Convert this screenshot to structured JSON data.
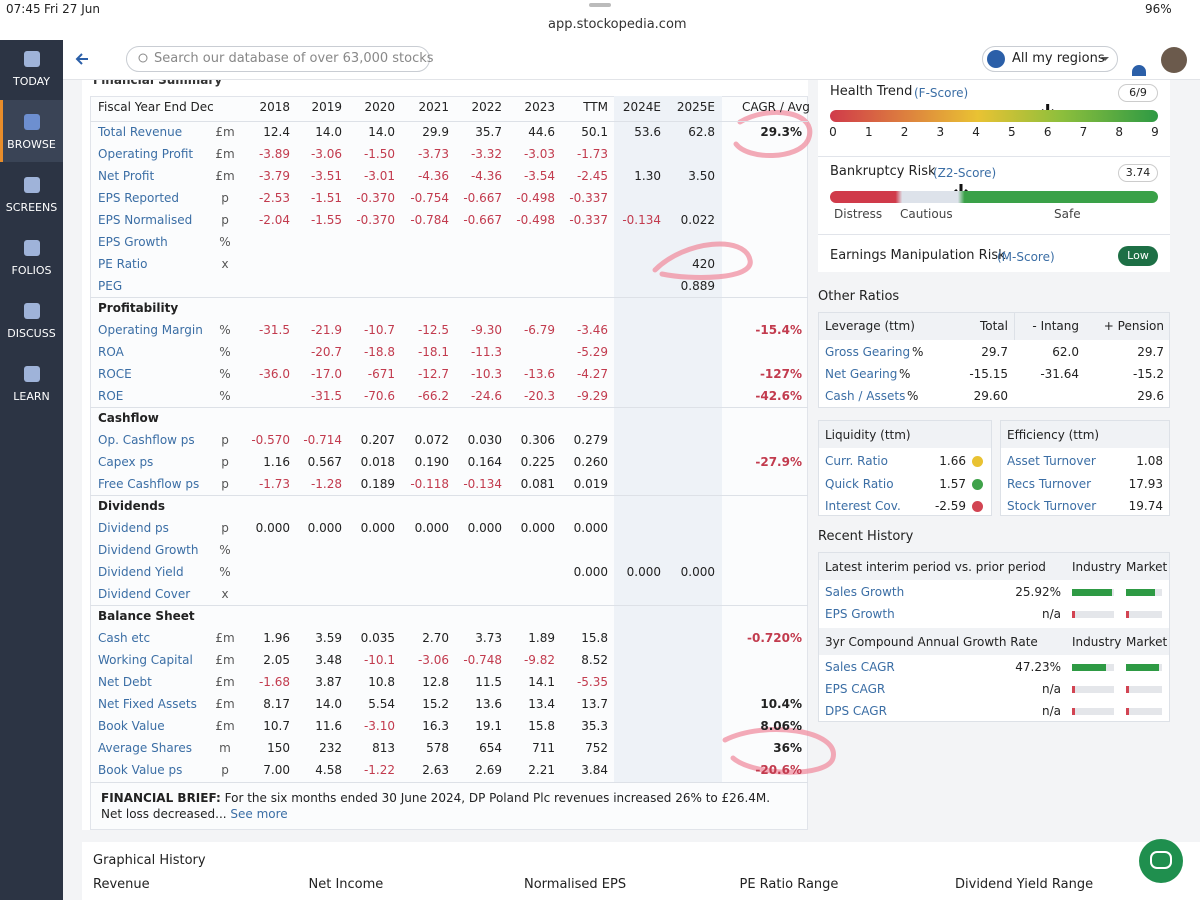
{
  "status": {
    "time": "07:45",
    "date": "Fri 27 Jun",
    "url": "app.stockopedia.com",
    "battery": "96%"
  },
  "nav": [
    "TODAY",
    "BROWSE",
    "SCREENS",
    "FOLIOS",
    "DISCUSS",
    "LEARN"
  ],
  "search": "Search our database of over 63,000 stocks",
  "region": "All my regions",
  "summary": {
    "title": "Financial Summary",
    "header": {
      "label": "Fiscal Year End Dec",
      "columns": [
        "2018",
        "2019",
        "2020",
        "2021",
        "2022",
        "2023",
        "TTM",
        "2024E",
        "2025E",
        "CAGR / Avg"
      ]
    },
    "rows": [
      {
        "label": "Total Revenue",
        "unit": "£m",
        "cells": [
          "12.4",
          "14.0",
          "14.0",
          "29.9",
          "35.7",
          "44.6",
          "50.1",
          "53.6",
          "62.8",
          "29.3%"
        ]
      },
      {
        "label": "Operating Profit",
        "unit": "£m",
        "cells": [
          "-3.89",
          "-3.06",
          "-1.50",
          "-3.73",
          "-3.32",
          "-3.03",
          "-1.73",
          null,
          null,
          null
        ]
      },
      {
        "label": "Net Profit",
        "unit": "£m",
        "cells": [
          "-3.79",
          "-3.51",
          "-3.01",
          "-4.36",
          "-4.36",
          "-3.54",
          "-2.45",
          "1.30",
          "3.50",
          null
        ]
      },
      {
        "label": "EPS Reported",
        "unit": "p",
        "cells": [
          "-2.53",
          "-1.51",
          "-0.370",
          "-0.754",
          "-0.667",
          "-0.498",
          "-0.337",
          null,
          null,
          null
        ]
      },
      {
        "label": "EPS Normalised",
        "unit": "p",
        "cells": [
          "-2.04",
          "-1.55",
          "-0.370",
          "-0.784",
          "-0.667",
          "-0.498",
          "-0.337",
          "-0.134",
          "0.022",
          null
        ]
      },
      {
        "label": "EPS Growth",
        "unit": "%",
        "cells": [
          null,
          null,
          null,
          null,
          null,
          null,
          null,
          null,
          null,
          null
        ]
      },
      {
        "label": "PE Ratio",
        "unit": "x",
        "cells": [
          null,
          null,
          null,
          null,
          null,
          null,
          null,
          null,
          "420",
          null
        ]
      },
      {
        "label": "PEG",
        "cells": [
          null,
          null,
          null,
          null,
          null,
          null,
          null,
          null,
          "0.889",
          null
        ]
      },
      {
        "section": "Profitability"
      },
      {
        "label": "Operating Margin",
        "unit": "%",
        "cells": [
          "-31.5",
          "-21.9",
          "-10.7",
          "-12.5",
          "-9.30",
          "-6.79",
          "-3.46",
          null,
          null,
          "-15.4%"
        ]
      },
      {
        "label": "ROA",
        "unit": "%",
        "cells": [
          null,
          "-20.7",
          "-18.8",
          "-18.1",
          "-11.3",
          null,
          "-5.29",
          null,
          null,
          null
        ]
      },
      {
        "label": "ROCE",
        "unit": "%",
        "cells": [
          "-36.0",
          "-17.0",
          "-671",
          "-12.7",
          "-10.3",
          "-13.6",
          "-4.27",
          null,
          null,
          "-127%"
        ]
      },
      {
        "label": "ROE",
        "unit": "%",
        "cells": [
          null,
          "-31.5",
          "-70.6",
          "-66.2",
          "-24.6",
          "-20.3",
          "-9.29",
          null,
          null,
          "-42.6%"
        ]
      },
      {
        "section": "Cashflow"
      },
      {
        "label": "Op. Cashflow ps",
        "unit": "p",
        "cells": [
          "-0.570",
          "-0.714",
          "0.207",
          "0.072",
          "0.030",
          "0.306",
          "0.279",
          null,
          null,
          null
        ]
      },
      {
        "label": "Capex ps",
        "unit": "p",
        "cells": [
          "1.16",
          "0.567",
          "0.018",
          "0.190",
          "0.164",
          "0.225",
          "0.260",
          null,
          null,
          "-27.9%"
        ]
      },
      {
        "label": "Free Cashflow ps",
        "unit": "p",
        "cells": [
          "-1.73",
          "-1.28",
          "0.189",
          "-0.118",
          "-0.134",
          "0.081",
          "0.019",
          null,
          null,
          null
        ]
      },
      {
        "section": "Dividends"
      },
      {
        "label": "Dividend ps",
        "unit": "p",
        "cells": [
          "0.000",
          "0.000",
          "0.000",
          "0.000",
          "0.000",
          "0.000",
          "0.000",
          null,
          null,
          null
        ]
      },
      {
        "label": "Dividend Growth",
        "unit": "%",
        "cells": [
          null,
          null,
          null,
          null,
          null,
          null,
          null,
          null,
          null,
          null
        ]
      },
      {
        "label": "Dividend Yield",
        "unit": "%",
        "cells": [
          null,
          null,
          null,
          null,
          null,
          null,
          "0.000",
          "0.000",
          "0.000",
          null
        ]
      },
      {
        "label": "Dividend Cover",
        "unit": "x",
        "cells": [
          null,
          null,
          null,
          null,
          null,
          null,
          null,
          null,
          null,
          null
        ]
      },
      {
        "section": "Balance Sheet"
      },
      {
        "label": "Cash etc",
        "unit": "£m",
        "cells": [
          "1.96",
          "3.59",
          "0.035",
          "2.70",
          "3.73",
          "1.89",
          "15.8",
          null,
          null,
          "-0.720%"
        ]
      },
      {
        "label": "Working Capital",
        "unit": "£m",
        "cells": [
          "2.05",
          "3.48",
          "-10.1",
          "-3.06",
          "-0.748",
          "-9.82",
          "8.52",
          null,
          null,
          null
        ]
      },
      {
        "label": "Net Debt",
        "unit": "£m",
        "cells": [
          "-1.68",
          "3.87",
          "10.8",
          "12.8",
          "11.5",
          "14.1",
          "-5.35",
          null,
          null,
          null
        ]
      },
      {
        "label": "Net Fixed Assets",
        "unit": "£m",
        "cells": [
          "8.17",
          "14.0",
          "5.54",
          "15.2",
          "13.6",
          "13.4",
          "13.7",
          null,
          null,
          "10.4%"
        ]
      },
      {
        "label": "Book Value",
        "unit": "£m",
        "cells": [
          "10.7",
          "11.6",
          "-3.10",
          "16.3",
          "19.1",
          "15.8",
          "35.3",
          null,
          null,
          "8.06%"
        ]
      },
      {
        "label": "Average Shares",
        "unit": "m",
        "cells": [
          "150",
          "232",
          "813",
          "578",
          "654",
          "711",
          "752",
          null,
          null,
          "36%"
        ]
      },
      {
        "label": "Book Value ps",
        "unit": "p",
        "cells": [
          "7.00",
          "4.58",
          "-1.22",
          "2.63",
          "2.69",
          "2.21",
          "3.84",
          null,
          null,
          "-20.6%"
        ]
      }
    ],
    "brief": {
      "label": "FINANCIAL BRIEF:",
      "text": "For the six months ended 30 June 2024, DP Poland Plc revenues increased 26% to £26.4M. Net loss decreased...",
      "link": "See more"
    }
  },
  "health": {
    "title": "Health Trend",
    "code": "(F-Score)",
    "score": {
      "value": 6,
      "label": "6/9"
    },
    "scale": [
      0,
      1,
      2,
      3,
      4,
      5,
      6,
      7,
      8,
      9
    ]
  },
  "bankruptcy": {
    "title": "Bankruptcy Risk",
    "code": "(Z2-Score)",
    "score": "3.74",
    "zones": [
      "Distress",
      "Cautious",
      "Safe"
    ]
  },
  "manipulation": {
    "title": "Earnings Manipulation Risk",
    "code": "(M-Score)",
    "rating": "Low"
  },
  "other_ratios": {
    "title": "Other Ratios",
    "leverage": {
      "header": [
        "Leverage (ttm)",
        "Total",
        "- Intang",
        "+ Pension"
      ],
      "rows": [
        {
          "label": "Gross Gearing",
          "unit": "%",
          "cells": [
            "29.7",
            "62.0",
            "29.7"
          ]
        },
        {
          "label": "Net Gearing",
          "unit": "%",
          "cells": [
            "-15.15",
            "-31.64",
            "-15.2"
          ]
        },
        {
          "label": "Cash / Assets",
          "unit": "%",
          "cells": [
            "29.60",
            null,
            "29.6"
          ]
        }
      ]
    },
    "liquidity": {
      "header": "Liquidity (ttm)",
      "rows": [
        {
          "label": "Curr. Ratio",
          "value": "1.66",
          "color": "#e9c232"
        },
        {
          "label": "Quick Ratio",
          "value": "1.57",
          "color": "#3fa24a"
        },
        {
          "label": "Interest Cov.",
          "value": "-2.59",
          "color": "#d24452"
        }
      ]
    },
    "efficiency": {
      "header": "Efficiency (ttm)",
      "rows": [
        {
          "label": "Asset Turnover",
          "value": "1.08"
        },
        {
          "label": "Recs Turnover",
          "value": "17.93"
        },
        {
          "label": "Stock Turnover",
          "value": "19.74"
        }
      ]
    }
  },
  "recent_history": {
    "title": "Recent History",
    "groups": [
      {
        "header": [
          "Latest interim period vs. prior period",
          "Industry",
          "Market"
        ],
        "rows": [
          {
            "label": "Sales Growth",
            "value": "25.92%"
          },
          {
            "label": "EPS Growth",
            "value": "n/a"
          }
        ]
      },
      {
        "header": [
          "3yr Compound Annual Growth Rate",
          "Industry",
          "Market"
        ],
        "rows": [
          {
            "label": "Sales CAGR",
            "value": "47.23%"
          },
          {
            "label": "EPS CAGR",
            "value": "n/a"
          },
          {
            "label": "DPS CAGR",
            "value": "n/a"
          }
        ]
      }
    ]
  },
  "graphical_history": {
    "title": "Graphical History",
    "tabs": [
      "Revenue",
      "Net Income",
      "Normalised EPS",
      "PE Ratio Range",
      "Dividend Yield Range"
    ]
  }
}
